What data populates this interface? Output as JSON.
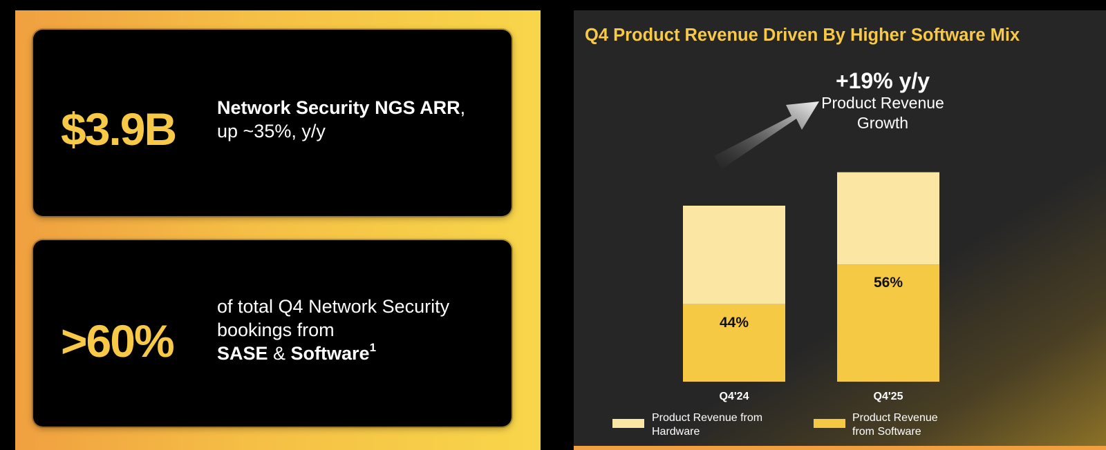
{
  "stats": [
    {
      "value": "$3.9B",
      "line1_bold": "Network Security NGS ARR",
      "line1_rest": ",",
      "line2": "up ~35%, y/y"
    },
    {
      "value": ">60%",
      "line1": "of total Q4 Network Security",
      "line2": "bookings from",
      "line3_bold_a": "SASE",
      "line3_mid": " & ",
      "line3_bold_b": "Software",
      "footnote": "1"
    }
  ],
  "growth": {
    "value": "+19% y/y",
    "label_line1": "Product Revenue",
    "label_line2": "Growth"
  },
  "colors": {
    "accent": "#f7c946",
    "hardware": "#fce6a3",
    "software": "#f6c945",
    "panel": "#262626"
  },
  "chart_data": {
    "type": "bar",
    "stacked": true,
    "title": "Q4 Product Revenue Driven By Higher Software Mix",
    "categories": [
      "Q4'24",
      "Q4'25"
    ],
    "totals_relative": [
      1.0,
      1.19
    ],
    "series": [
      {
        "name": "Product Revenue from Software",
        "values": [
          44,
          56
        ],
        "labels": [
          "44%",
          "56%"
        ]
      },
      {
        "name": "Product Revenue from Hardware",
        "values": [
          56,
          44
        ]
      }
    ],
    "legend": [
      {
        "line1": "Product Revenue from",
        "line2": "Hardware"
      },
      {
        "line1": "Product Revenue",
        "line2": "from Software"
      }
    ]
  }
}
